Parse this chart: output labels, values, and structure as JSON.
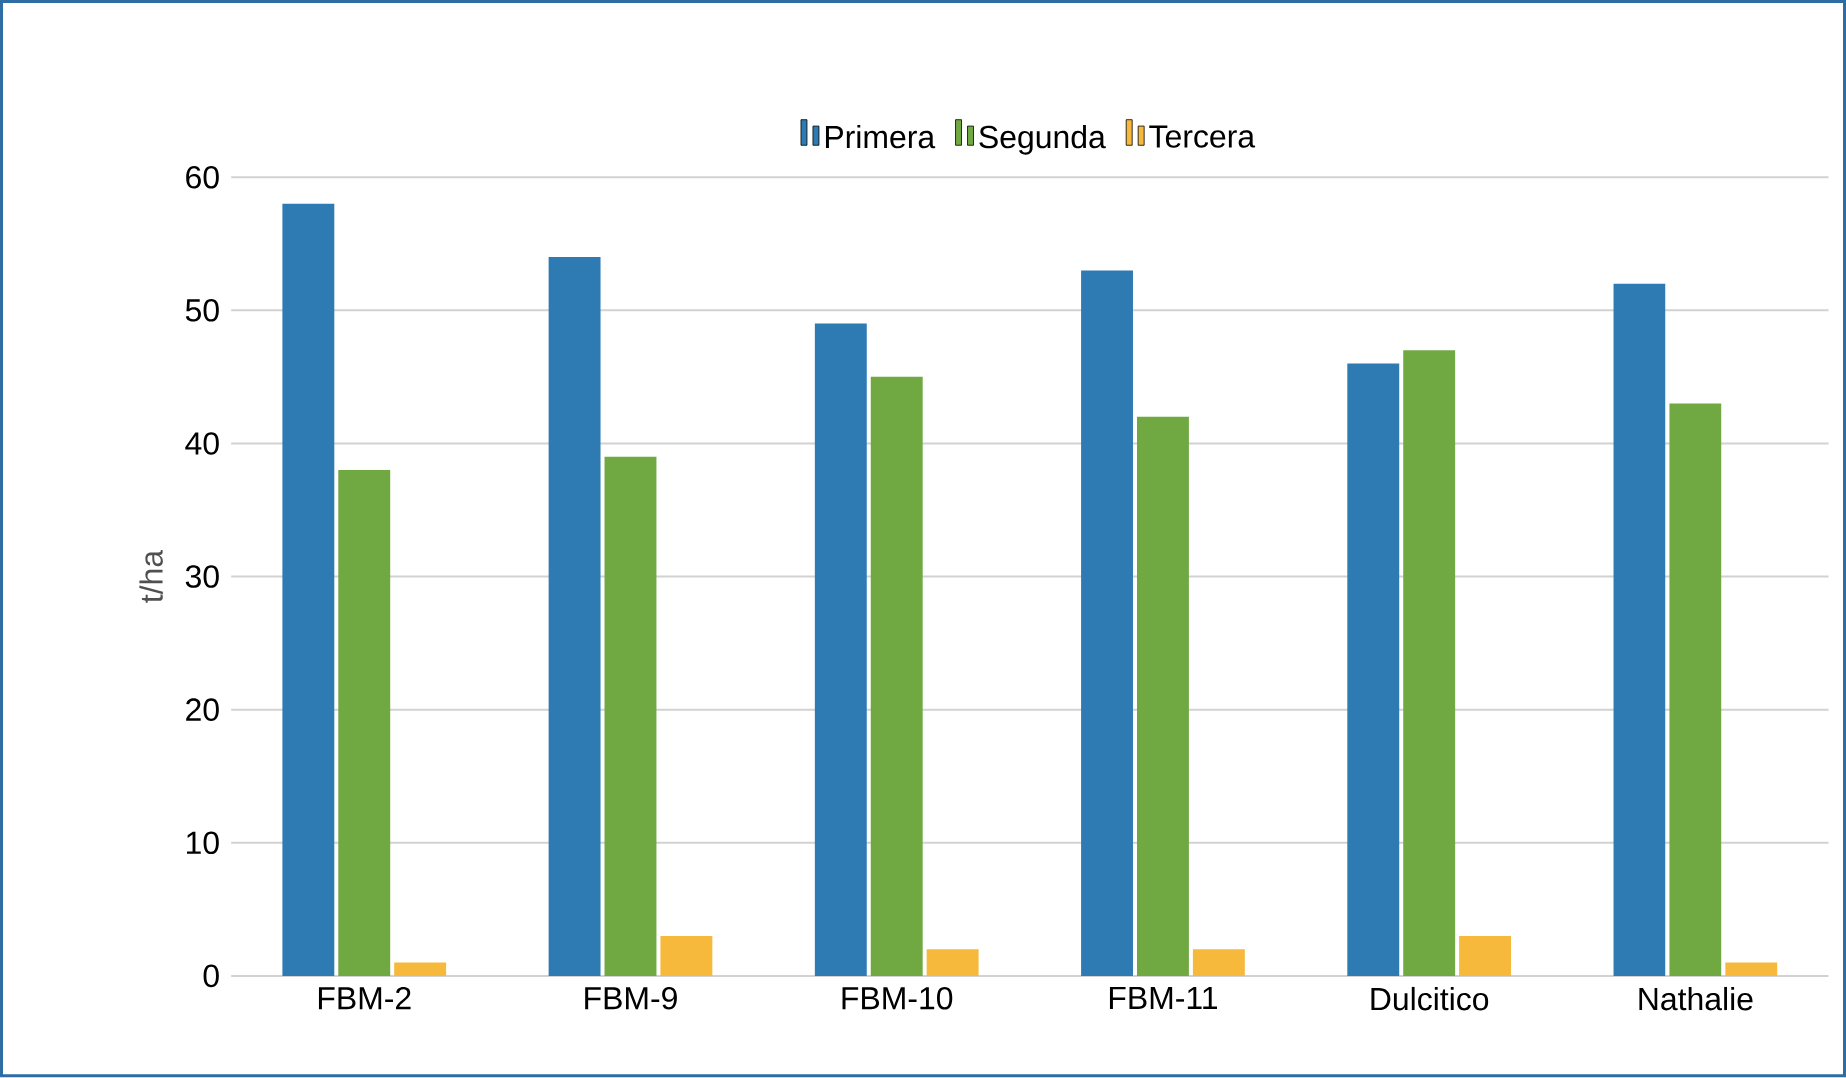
{
  "chart_data": {
    "type": "bar",
    "ylabel": "t/ha",
    "categories": [
      "FBM-2",
      "FBM-9",
      "FBM-10",
      "FBM-11",
      "Dulcitico",
      "Nathalie"
    ],
    "series": [
      {
        "name": "Primera",
        "color": "#2e7bb4",
        "values": [
          58,
          54,
          49,
          53,
          46,
          52
        ]
      },
      {
        "name": "Segunda",
        "color": "#70a842",
        "values": [
          38,
          39,
          45,
          42,
          47,
          43
        ]
      },
      {
        "name": "Tercera",
        "color": "#f6b93b",
        "values": [
          1,
          3,
          2,
          2,
          3,
          1
        ]
      }
    ],
    "ylim": [
      0,
      60
    ],
    "yticks": [
      0,
      10,
      20,
      30,
      40,
      50,
      60
    ],
    "grid": "y",
    "legend": "top"
  }
}
